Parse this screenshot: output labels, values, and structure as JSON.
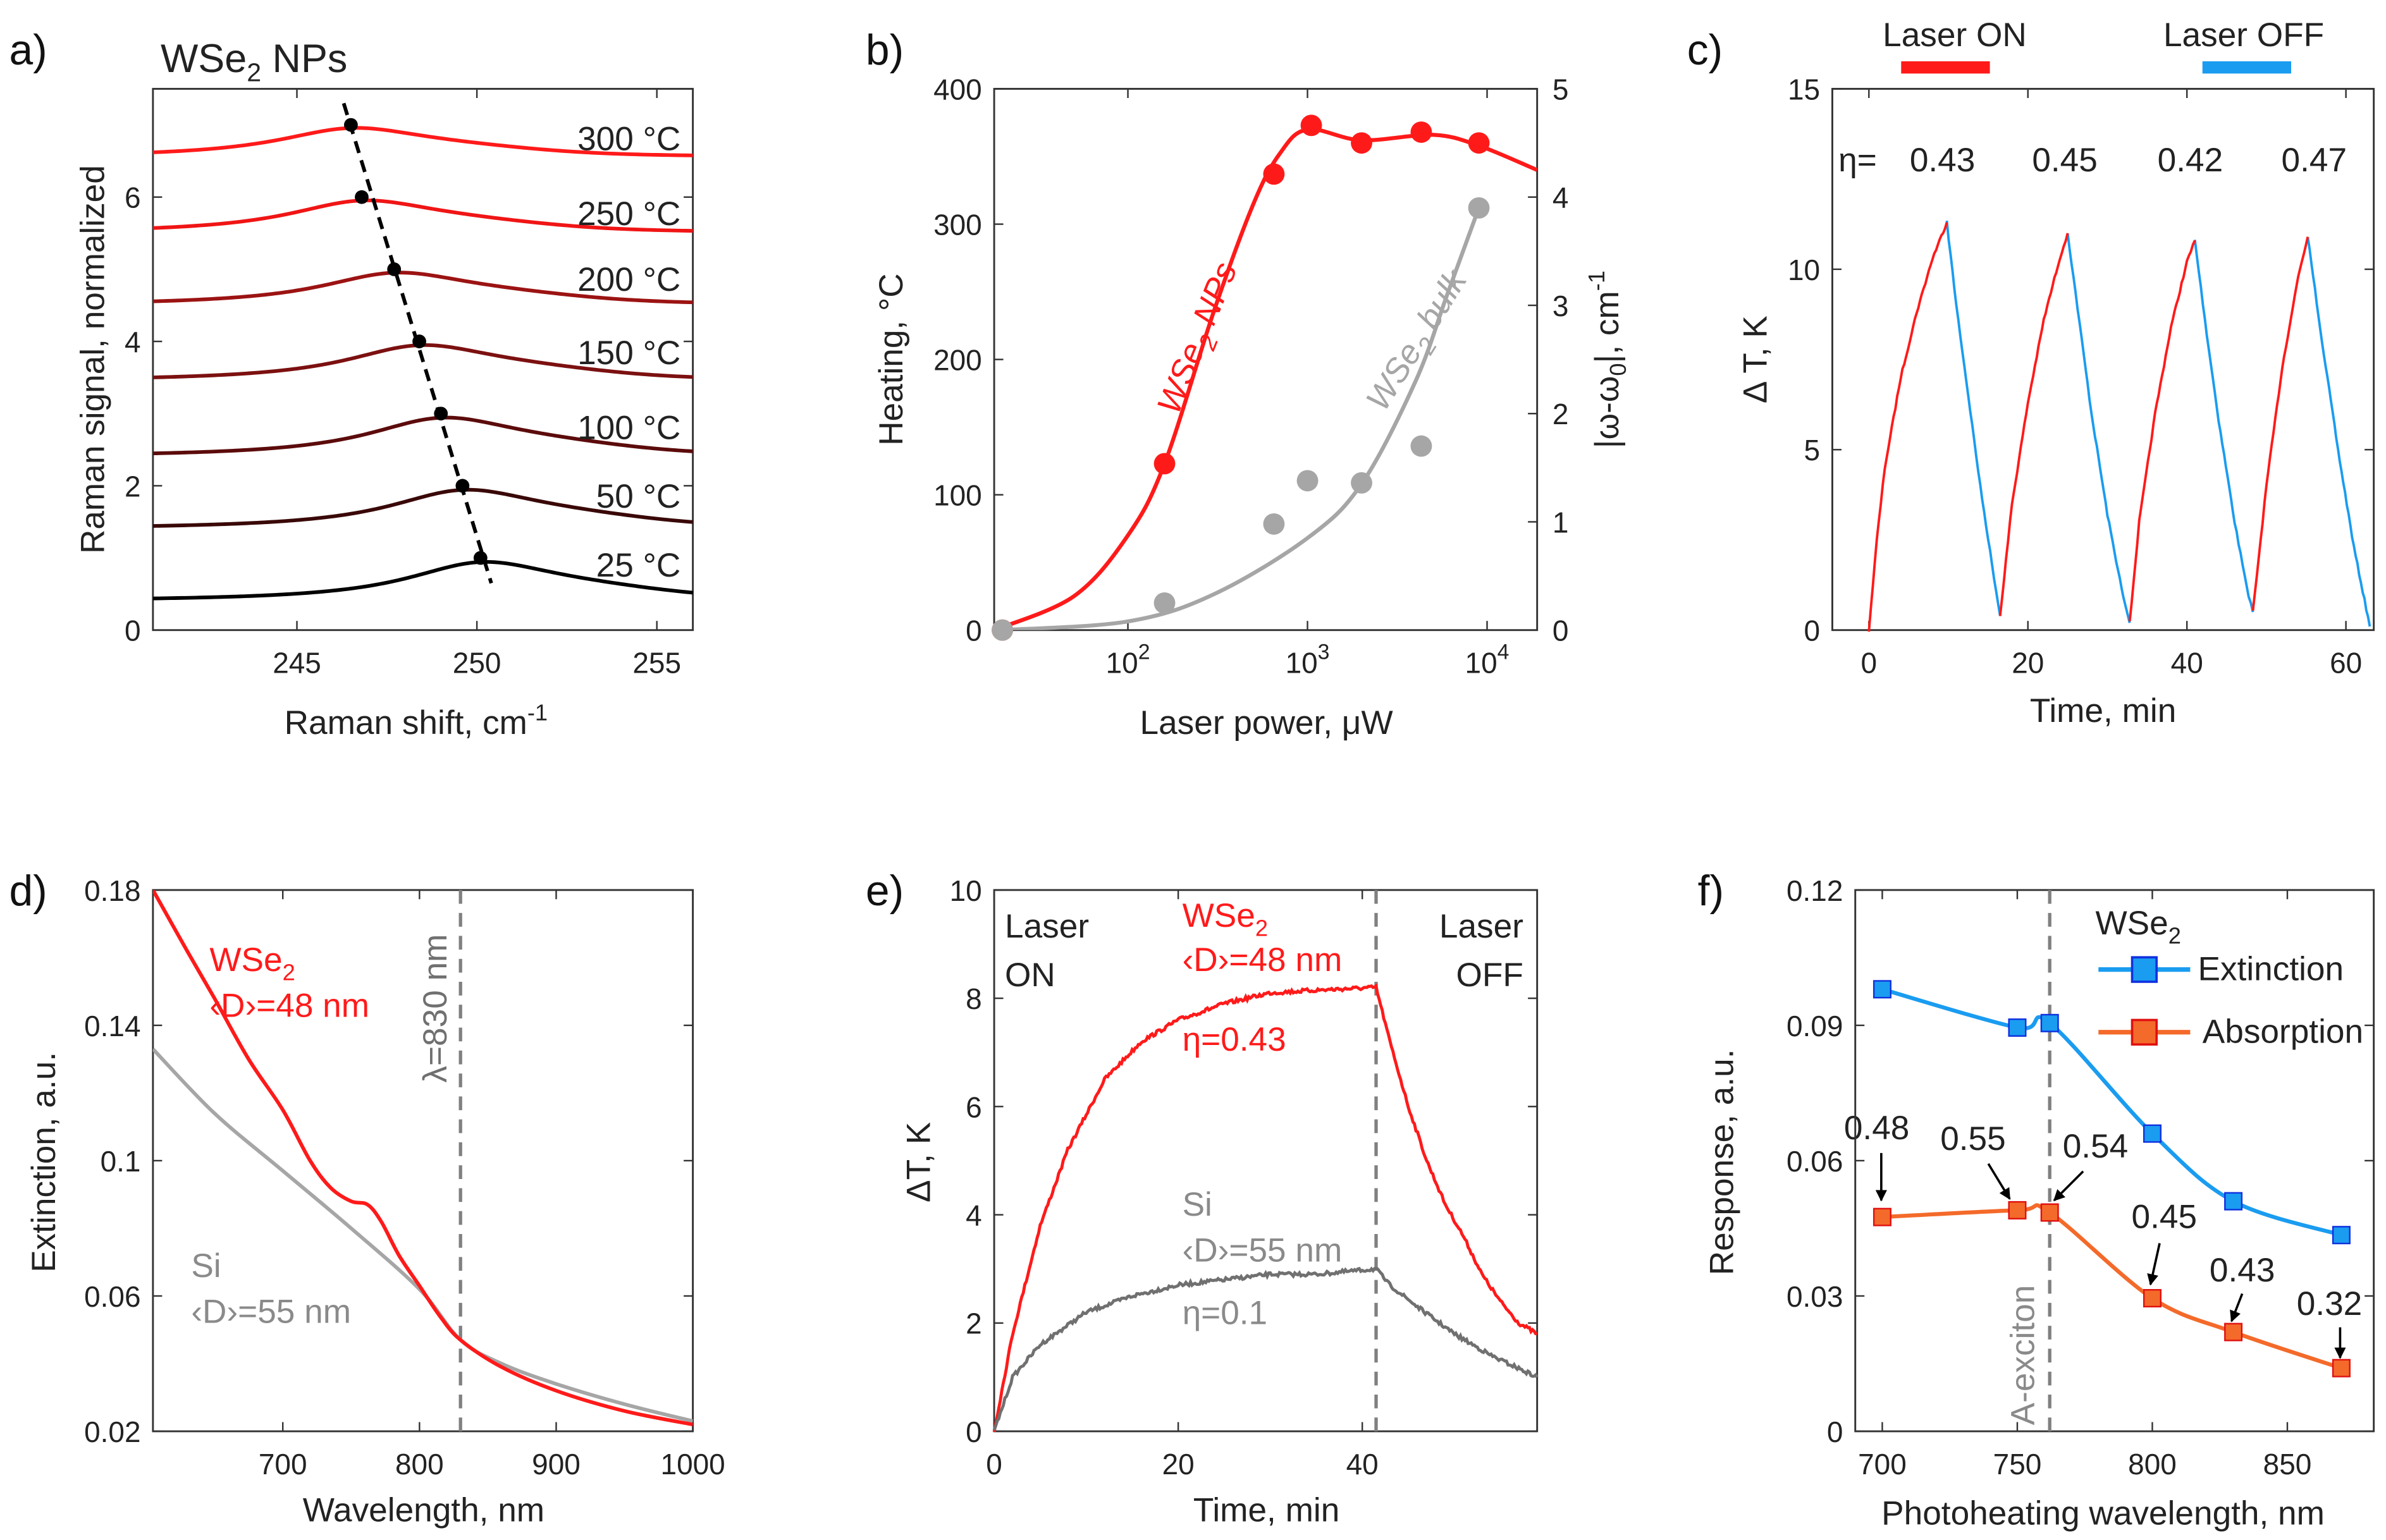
{
  "colors": {
    "red": "#ff1a1a",
    "gray": "#a6a6a6",
    "darkgray": "#707070",
    "blue": "#1a9cf0",
    "orange": "#f46a2a",
    "black": "#000000"
  },
  "chart_data": [
    {
      "id": "a",
      "panel_label": "a)",
      "type": "line",
      "title": {
        "main": "WSe",
        "sub": "2",
        "rest": " NPs"
      },
      "xlabel": {
        "main": "Raman shift, cm",
        "sup": "-1"
      },
      "ylabel": "Raman signal, normalized",
      "xlim": [
        241,
        256
      ],
      "ylim": [
        0,
        7.5
      ],
      "xticks": [
        245,
        250,
        255
      ],
      "yticks": [
        0,
        2,
        4,
        6
      ],
      "series": [
        {
          "name": "25 °C",
          "color": "#000000",
          "baseline": 0.4,
          "peak_x": 250.1,
          "peak_y": 1.0
        },
        {
          "name": "50 °C",
          "color": "#3a0808",
          "baseline": 1.4,
          "peak_x": 249.6,
          "peak_y": 2.0
        },
        {
          "name": "100 °C",
          "color": "#5c0b0b",
          "baseline": 2.4,
          "peak_x": 249.0,
          "peak_y": 3.0
        },
        {
          "name": "150 °C",
          "color": "#7c1010",
          "baseline": 3.45,
          "peak_x": 248.4,
          "peak_y": 4.0
        },
        {
          "name": "200 °C",
          "color": "#9c1313",
          "baseline": 4.5,
          "peak_x": 247.7,
          "peak_y": 5.0
        },
        {
          "name": "250 °C",
          "color": "#f01515",
          "baseline": 5.5,
          "peak_x": 246.8,
          "peak_y": 6.0
        },
        {
          "name": "300 °C",
          "color": "#ff1a1a",
          "baseline": 6.55,
          "peak_x": 246.5,
          "peak_y": 7.0
        }
      ],
      "trend_line": [
        [
          246.3,
          7.3
        ],
        [
          250.4,
          0.65
        ]
      ]
    },
    {
      "id": "b",
      "panel_label": "b)",
      "type": "scatter",
      "xlabel": "Laser power, μW",
      "ylabel": "Heating, °C",
      "y2label": {
        "a": "|ω-ω",
        "sub": "0",
        "b": "|, cm",
        "sup": "-1"
      },
      "xscale": "log",
      "xlim": [
        18,
        19000
      ],
      "ylim": [
        0,
        400
      ],
      "y2lim": [
        0,
        5
      ],
      "xticks": [
        100,
        1000,
        10000
      ],
      "xtick_labels": [
        {
          "b": "10",
          "e": "2"
        },
        {
          "b": "10",
          "e": "3"
        },
        {
          "b": "10",
          "e": "4"
        }
      ],
      "yticks": [
        0,
        100,
        200,
        300,
        400
      ],
      "y2ticks": [
        0,
        1,
        2,
        3,
        4,
        5
      ],
      "series": [
        {
          "name": {
            "main": "WSe",
            "sub": "2",
            "rest": " NPs"
          },
          "axis": "left",
          "color": "#ff1a1a",
          "points": [
            [
              20,
              0
            ],
            [
              160,
              123
            ],
            [
              650,
              337
            ],
            [
              1050,
              373
            ],
            [
              2000,
              360
            ],
            [
              4300,
              368
            ],
            [
              9000,
              360
            ]
          ],
          "fit": [
            [
              18,
              0
            ],
            [
              50,
              25
            ],
            [
              100,
              70
            ],
            [
              160,
              123
            ],
            [
              300,
              235
            ],
            [
              500,
              315
            ],
            [
              700,
              352
            ],
            [
              1000,
              370
            ],
            [
              2000,
              362
            ],
            [
              5000,
              366
            ],
            [
              9000,
              358
            ],
            [
              19000,
              340
            ]
          ]
        },
        {
          "name": {
            "main": "WSe",
            "sub": "2",
            "rest": " bulk"
          },
          "axis": "right",
          "color": "#a6a6a6",
          "points": [
            [
              20,
              0
            ],
            [
              160,
              0.25
            ],
            [
              650,
              0.98
            ],
            [
              1000,
              1.38
            ],
            [
              2000,
              1.36
            ],
            [
              4300,
              1.7
            ],
            [
              9000,
              3.9
            ]
          ],
          "fit": [
            [
              20,
              0
            ],
            [
              100,
              0.08
            ],
            [
              300,
              0.33
            ],
            [
              1000,
              0.85
            ],
            [
              2000,
              1.35
            ],
            [
              4000,
              2.3
            ],
            [
              6000,
              3.1
            ],
            [
              9000,
              3.9
            ]
          ]
        }
      ]
    },
    {
      "id": "c",
      "panel_label": "c)",
      "type": "line",
      "xlabel": "Time, min",
      "ylabel": "Δ T, K",
      "xlim": [
        -4.6,
        63.5
      ],
      "ylim": [
        0,
        15
      ],
      "xticks": [
        0,
        20,
        40,
        60
      ],
      "yticks": [
        0,
        5,
        10,
        15
      ],
      "legend": [
        {
          "label": "Laser ON",
          "color": "#ff1a1a"
        },
        {
          "label": "Laser OFF",
          "color": "#1a9cf0"
        }
      ],
      "eta_prefix": "η=",
      "eta": [
        "0.43",
        "0.45",
        "0.42",
        "0.47"
      ],
      "on_segments": [
        [
          [
            0,
            0
          ],
          [
            1,
            2.5
          ],
          [
            2,
            4.5
          ],
          [
            4,
            7
          ],
          [
            6,
            8.8
          ],
          [
            8,
            10.3
          ],
          [
            9.8,
            11.3
          ]
        ],
        [
          [
            16.5,
            0.4
          ],
          [
            18,
            3.5
          ],
          [
            20,
            6.3
          ],
          [
            22,
            8.6
          ],
          [
            24,
            10.3
          ],
          [
            25,
            11
          ]
        ],
        [
          [
            32.8,
            0.2
          ],
          [
            34,
            3
          ],
          [
            36,
            6
          ],
          [
            38,
            8.4
          ],
          [
            40,
            10.2
          ],
          [
            41,
            10.8
          ]
        ],
        [
          [
            48.3,
            0.5
          ],
          [
            50,
            4
          ],
          [
            52,
            7.3
          ],
          [
            54,
            9.8
          ],
          [
            55.2,
            10.9
          ]
        ]
      ],
      "off_segments": [
        [
          [
            9.8,
            11.3
          ],
          [
            11,
            9
          ],
          [
            12.5,
            6.5
          ],
          [
            14,
            4
          ],
          [
            15.5,
            1.8
          ],
          [
            16.5,
            0.4
          ]
        ],
        [
          [
            25,
            11
          ],
          [
            26.5,
            8.5
          ],
          [
            28,
            6
          ],
          [
            30,
            3.2
          ],
          [
            32,
            0.9
          ],
          [
            32.8,
            0.2
          ]
        ],
        [
          [
            41,
            10.8
          ],
          [
            42.5,
            8.2
          ],
          [
            44,
            5.8
          ],
          [
            46,
            3
          ],
          [
            47.5,
            1.2
          ],
          [
            48.3,
            0.5
          ]
        ],
        [
          [
            55.2,
            10.9
          ],
          [
            57,
            8
          ],
          [
            59,
            5
          ],
          [
            61,
            2.3
          ],
          [
            63,
            0.1
          ]
        ]
      ]
    },
    {
      "id": "d",
      "panel_label": "d)",
      "type": "line",
      "xlabel": "Wavelength, nm",
      "ylabel": "Extinction, a.u.",
      "xlim": [
        605,
        1000
      ],
      "ylim": [
        0.02,
        0.18
      ],
      "xticks": [
        700,
        800,
        900,
        1000
      ],
      "yticks": [
        0.02,
        0.06,
        0.1,
        0.14,
        0.18
      ],
      "vline": {
        "x": 830,
        "label": "λ=830 nm"
      },
      "series": [
        {
          "label": {
            "main": "WSe",
            "sub": "2",
            "d": "‹D›=48 nm"
          },
          "color": "#ff1a1a",
          "points": [
            [
              605,
              0.18
            ],
            [
              630,
              0.162
            ],
            [
              650,
              0.148
            ],
            [
              675,
              0.13
            ],
            [
              700,
              0.115
            ],
            [
              720,
              0.1
            ],
            [
              735,
              0.092
            ],
            [
              750,
              0.088
            ],
            [
              762,
              0.087
            ],
            [
              772,
              0.082
            ],
            [
              785,
              0.072
            ],
            [
              800,
              0.063
            ],
            [
              815,
              0.054
            ],
            [
              830,
              0.047
            ],
            [
              860,
              0.039
            ],
            [
              900,
              0.032
            ],
            [
              950,
              0.026
            ],
            [
              1000,
              0.022
            ]
          ]
        },
        {
          "label": {
            "main": "Si",
            "d": "‹D›=55 nm"
          },
          "color": "#a6a6a6",
          "points": [
            [
              605,
              0.133
            ],
            [
              650,
              0.114
            ],
            [
              700,
              0.097
            ],
            [
              750,
              0.08
            ],
            [
              800,
              0.062
            ],
            [
              830,
              0.047
            ],
            [
              860,
              0.04
            ],
            [
              900,
              0.034
            ],
            [
              950,
              0.028
            ],
            [
              1000,
              0.023
            ]
          ]
        }
      ]
    },
    {
      "id": "e",
      "panel_label": "e)",
      "type": "line",
      "xlabel": "Time, min",
      "ylabel": "ΔT, K",
      "xlim": [
        0,
        59
      ],
      "ylim": [
        0,
        10
      ],
      "xticks": [
        0,
        20,
        40
      ],
      "yticks": [
        0,
        2,
        4,
        6,
        8,
        10
      ],
      "vline": {
        "x": 41.5
      },
      "on_label": [
        "Laser",
        "ON"
      ],
      "off_label": [
        "Laser",
        "OFF"
      ],
      "series": [
        {
          "label": {
            "main": "WSe",
            "sub": "2",
            "d": "‹D›=48 nm",
            "eta": "η=0.43"
          },
          "color": "#ff1a1a",
          "points": [
            [
              0,
              0
            ],
            [
              2,
              1.8
            ],
            [
              5,
              3.8
            ],
            [
              8,
              5.2
            ],
            [
              12,
              6.5
            ],
            [
              16,
              7.2
            ],
            [
              20,
              7.6
            ],
            [
              25,
              7.9
            ],
            [
              30,
              8.1
            ],
            [
              35,
              8.15
            ],
            [
              41.5,
              8.2
            ],
            [
              43,
              7.2
            ],
            [
              45,
              6
            ],
            [
              47,
              5
            ],
            [
              49,
              4.2
            ],
            [
              51,
              3.6
            ],
            [
              53,
              2.9
            ],
            [
              55,
              2.4
            ],
            [
              57,
              2
            ],
            [
              59,
              1.8
            ]
          ]
        },
        {
          "label": {
            "main": "Si",
            "d": "‹D›=55 nm",
            "eta": "η=0.1"
          },
          "color": "#707070",
          "points": [
            [
              0,
              0
            ],
            [
              2,
              1
            ],
            [
              5,
              1.6
            ],
            [
              10,
              2.2
            ],
            [
              15,
              2.5
            ],
            [
              20,
              2.7
            ],
            [
              25,
              2.8
            ],
            [
              30,
              2.9
            ],
            [
              35,
              2.9
            ],
            [
              41.5,
              3.0
            ],
            [
              43,
              2.7
            ],
            [
              46,
              2.3
            ],
            [
              50,
              1.8
            ],
            [
              54,
              1.4
            ],
            [
              59,
              1.0
            ]
          ]
        }
      ]
    },
    {
      "id": "f",
      "panel_label": "f)",
      "type": "line",
      "xlabel": "Photoheating wavelength, nm",
      "ylabel": "Response, a.u.",
      "xlim": [
        690,
        882
      ],
      "ylim": [
        0,
        0.12
      ],
      "xticks": [
        700,
        750,
        800,
        850
      ],
      "yticks": [
        0,
        0.03,
        0.06,
        0.09,
        0.12
      ],
      "vline": {
        "x": 762,
        "label": "A-exciton"
      },
      "legend_title": {
        "main": "WSe",
        "sub": "2"
      },
      "series": [
        {
          "name": "Extinction",
          "color": "#1a9cf0",
          "edge": "#1030e0",
          "points": [
            [
              700,
              0.098
            ],
            [
              750,
              0.0895
            ],
            [
              762,
              0.0905
            ],
            [
              800,
              0.066
            ],
            [
              830,
              0.051
            ],
            [
              870,
              0.0435
            ]
          ]
        },
        {
          "name": "Absorption",
          "color": "#f46a2a",
          "edge": "#e01010",
          "points": [
            [
              700,
              0.0475
            ],
            [
              750,
              0.049
            ],
            [
              762,
              0.0485
            ],
            [
              800,
              0.0295
            ],
            [
              830,
              0.022
            ],
            [
              870,
              0.014
            ]
          ]
        }
      ],
      "annotations": [
        "0.48",
        "0.55",
        "0.54",
        "0.45",
        "0.43",
        "0.32"
      ]
    }
  ]
}
